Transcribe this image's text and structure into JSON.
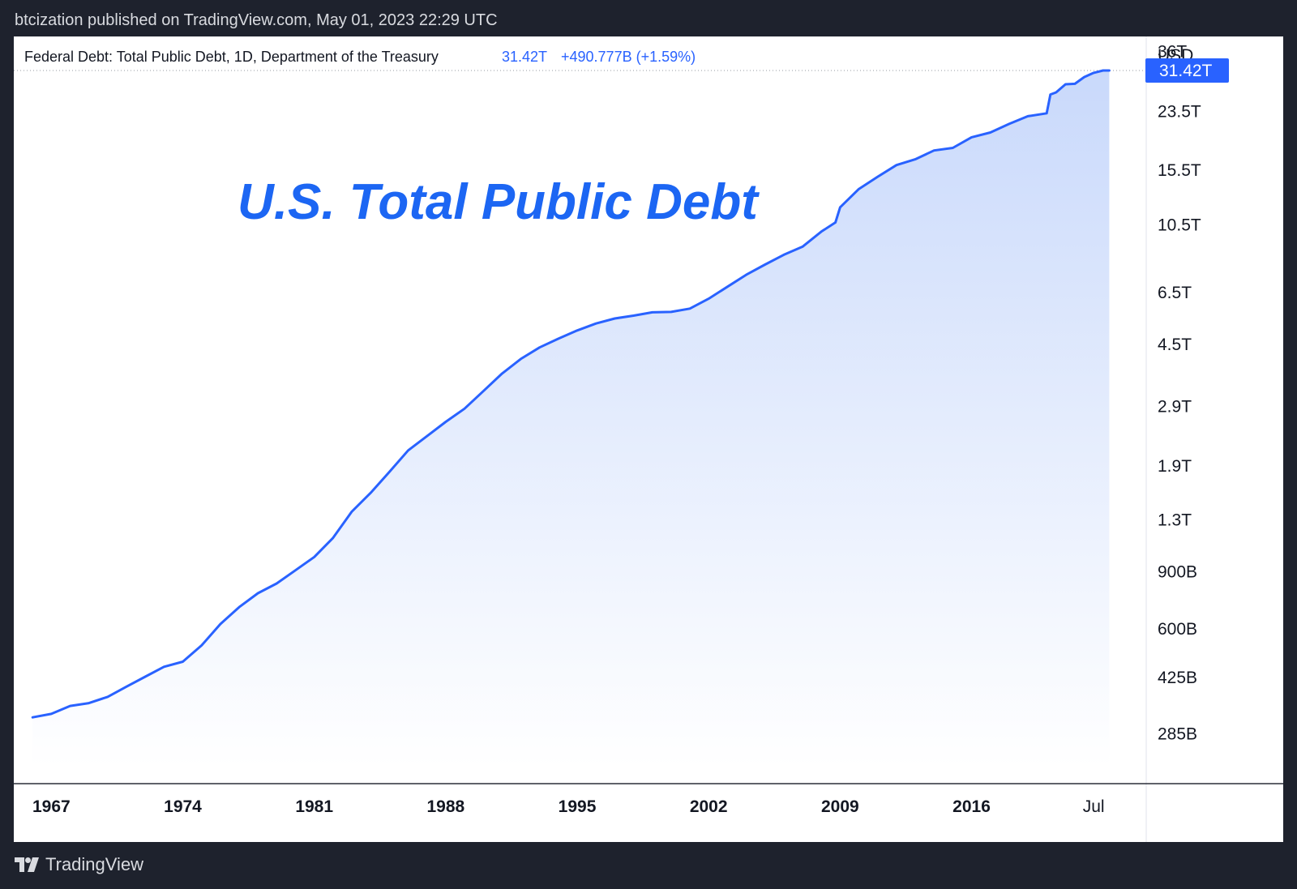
{
  "header": {
    "publish_line": "btcization published on TradingView.com, May 01, 2023 22:29 UTC"
  },
  "legend": {
    "series_title": "Federal Debt: Total Public Debt, 1D, Department of the Treasury",
    "last_value": "31.42T",
    "change": "+490.777B (+1.59%)"
  },
  "footer": {
    "brand": "TradingView"
  },
  "colors": {
    "background": "#1e222d",
    "line": "#2962ff",
    "fill_top": "#c9d9fb",
    "title": "#1c66f3",
    "price_tag": "#2962ff"
  },
  "chart_data": {
    "type": "area",
    "title": "U.S. Total Public Debt",
    "unit_label": "USD",
    "scale": "log",
    "ylim": [
      200000000000,
      40000000000000
    ],
    "y_ticks": [
      {
        "value": 36000000000000,
        "label": "36T"
      },
      {
        "value": 23500000000000,
        "label": "23.5T"
      },
      {
        "value": 15500000000000,
        "label": "15.5T"
      },
      {
        "value": 10500000000000,
        "label": "10.5T"
      },
      {
        "value": 6500000000000,
        "label": "6.5T"
      },
      {
        "value": 4500000000000,
        "label": "4.5T"
      },
      {
        "value": 2900000000000,
        "label": "2.9T"
      },
      {
        "value": 1900000000000,
        "label": "1.9T"
      },
      {
        "value": 1300000000000,
        "label": "1.3T"
      },
      {
        "value": 900000000000,
        "label": "900B"
      },
      {
        "value": 600000000000,
        "label": "600B"
      },
      {
        "value": 425000000000,
        "label": "425B"
      },
      {
        "value": 285000000000,
        "label": "285B"
      }
    ],
    "x_ticks": [
      {
        "value": 1967,
        "label": "1967"
      },
      {
        "value": 1974,
        "label": "1974"
      },
      {
        "value": 1981,
        "label": "1981"
      },
      {
        "value": 1988,
        "label": "1988"
      },
      {
        "value": 1995,
        "label": "1995"
      },
      {
        "value": 2002,
        "label": "2002"
      },
      {
        "value": 2009,
        "label": "2009"
      },
      {
        "value": 2016,
        "label": "2016"
      },
      {
        "value": 2022.5,
        "label": "Jul"
      }
    ],
    "xlim": [
      1965,
      2025.3
    ],
    "last_value": {
      "value": 31420000000000,
      "label": "31.42T"
    },
    "series": [
      {
        "x": [
          1966.0,
          1967.0,
          1968.0,
          1969.0,
          1970.0,
          1971.0,
          1972.0,
          1973.0,
          1974.0,
          1975.0,
          1976.0,
          1977.0,
          1978.0,
          1979.0,
          1980.0,
          1981.0,
          1982.0,
          1983.0,
          1984.0,
          1985.0,
          1986.0,
          1987.0,
          1988.0,
          1989.0,
          1990.0,
          1991.0,
          1992.0,
          1993.0,
          1994.0,
          1995.0,
          1996.0,
          1997.0,
          1998.0,
          1999.0,
          2000.0,
          2001.0,
          2002.0,
          2003.0,
          2004.0,
          2005.0,
          2006.0,
          2007.0,
          2008.0,
          2008.75,
          2009.0,
          2010.0,
          2011.0,
          2012.0,
          2013.0,
          2014.0,
          2015.0,
          2016.0,
          2017.0,
          2018.0,
          2019.0,
          2020.0,
          2020.2,
          2020.5,
          2021.0,
          2021.5,
          2022.0,
          2022.5,
          2023.0,
          2023.33
        ],
        "values": [
          320000000000,
          328000000000,
          347000000000,
          354000000000,
          370000000000,
          398000000000,
          427000000000,
          458000000000,
          475000000000,
          533000000000,
          620000000000,
          699000000000,
          772000000000,
          827000000000,
          908000000000,
          998000000000,
          1142000000000,
          1377000000000,
          1572000000000,
          1823000000000,
          2125000000000,
          2350000000000,
          2602000000000,
          2857000000000,
          3233000000000,
          3665000000000,
          4065000000000,
          4411000000000,
          4693000000000,
          4974000000000,
          5225000000000,
          5413000000000,
          5526000000000,
          5656000000000,
          5674000000000,
          5807000000000,
          6228000000000,
          6783000000000,
          7379000000000,
          7933000000000,
          8507000000000,
          9008000000000,
          10025000000000,
          10700000000000,
          11910000000000,
          13562000000000,
          14790000000000,
          16066000000000,
          16738000000000,
          17824000000000,
          18151000000000,
          19573000000000,
          20245000000000,
          21516000000000,
          22719000000000,
          23201000000000,
          26500000000000,
          26900000000000,
          28500000000000,
          28600000000000,
          30000000000000,
          30900000000000,
          31420000000000,
          31420000000000
        ]
      }
    ]
  }
}
